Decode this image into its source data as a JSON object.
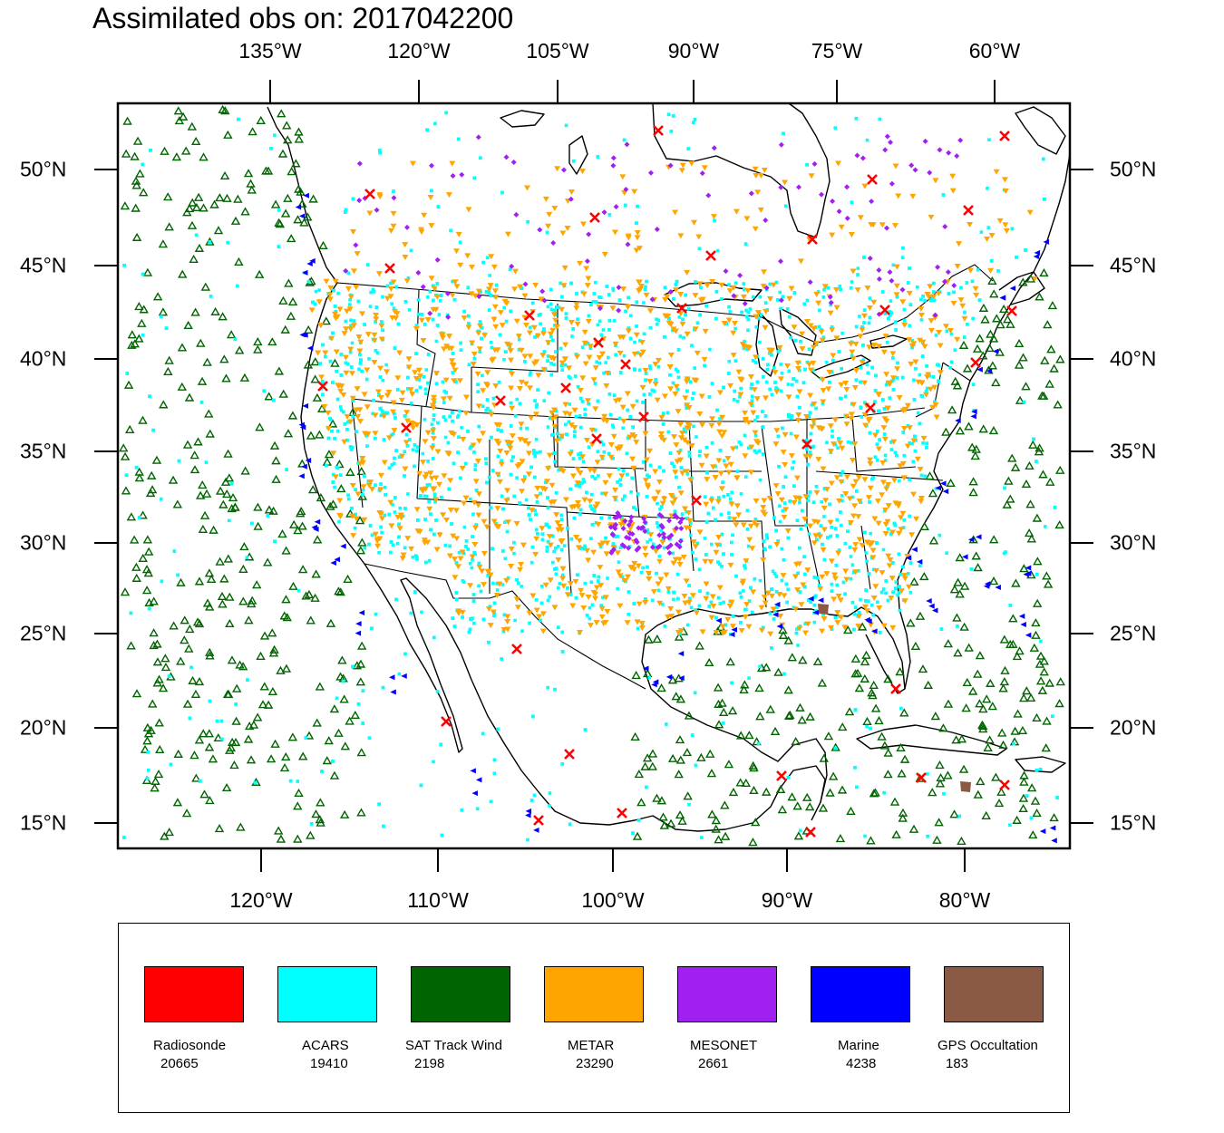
{
  "title": "Assimilated obs on: 2017042200",
  "top_lon_labels": [
    "135°W",
    "120°W",
    "105°W",
    "90°W",
    "75°W",
    "60°W"
  ],
  "bottom_lon_labels": [
    "120°W",
    "110°W",
    "100°W",
    "90°W",
    "80°W"
  ],
  "lat_labels": [
    "50°N",
    "45°N",
    "40°N",
    "35°N",
    "30°N",
    "25°N",
    "20°N",
    "15°N"
  ],
  "legend": [
    {
      "name": "Radiosonde",
      "count": "20665",
      "color": "#ff0000"
    },
    {
      "name": "ACARS",
      "count": "19410",
      "color": "#00ffff"
    },
    {
      "name": "SAT Track Wind",
      "count": "2198",
      "color": "#006400"
    },
    {
      "name": "METAR",
      "count": "23290",
      "color": "#ffa500"
    },
    {
      "name": "MESONET",
      "count": "2661",
      "color": "#a020f0"
    },
    {
      "name": "Marine",
      "count": "4238",
      "color": "#0000ff"
    },
    {
      "name": "GPS Occultation",
      "count": "183",
      "color": "#8b5a44"
    }
  ]
}
